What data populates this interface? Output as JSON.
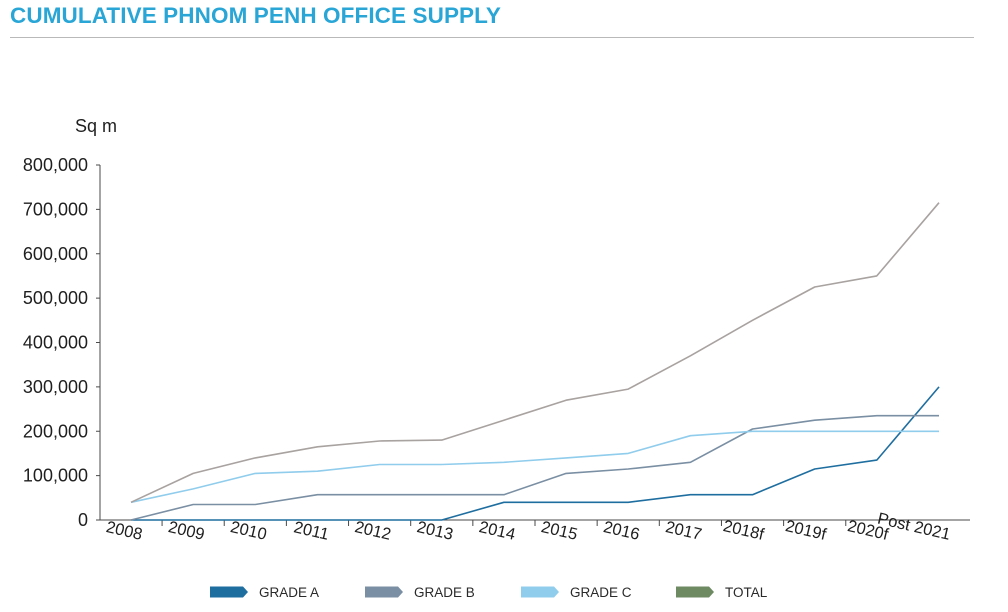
{
  "title": "CUMULATIVE PHNOM PENH OFFICE SUPPLY",
  "colors": {
    "title": "#2aa6d6",
    "axis": "#4a4a4a"
  },
  "chart_data": {
    "type": "line",
    "ylabel": "Sq m",
    "xlabel": "",
    "ylim": [
      0,
      800000
    ],
    "yticks": [
      0,
      100000,
      200000,
      300000,
      400000,
      500000,
      600000,
      700000,
      800000
    ],
    "ytick_labels": [
      "0",
      "100,000",
      "200,000",
      "300,000",
      "400,000",
      "500,000",
      "600,000",
      "700,000",
      "800,000"
    ],
    "categories": [
      "2008",
      "2009",
      "2010",
      "2011",
      "2012",
      "2013",
      "2014",
      "2015",
      "2016",
      "2017",
      "2018f",
      "2019f",
      "2020f",
      "Post 2021"
    ],
    "legend_position": "bottom",
    "grid": false,
    "series": [
      {
        "name": "GRADE A",
        "color": "#1f6ea0",
        "values": [
          0,
          0,
          0,
          0,
          0,
          0,
          40000,
          40000,
          40000,
          57000,
          57000,
          115000,
          135000,
          300000
        ]
      },
      {
        "name": "GRADE B",
        "color": "#7a8fa3",
        "values": [
          0,
          35000,
          35000,
          57000,
          57000,
          57000,
          57000,
          105000,
          115000,
          130000,
          205000,
          225000,
          235000,
          235000
        ]
      },
      {
        "name": "GRADE C",
        "color": "#90ccec",
        "values": [
          40000,
          70000,
          105000,
          110000,
          125000,
          125000,
          130000,
          140000,
          150000,
          190000,
          200000,
          200000,
          200000,
          200000
        ]
      },
      {
        "name": "TOTAL",
        "color": "#a8a2a0",
        "legend_color": "#6e8a63",
        "values": [
          40000,
          105000,
          140000,
          165000,
          178000,
          180000,
          225000,
          270000,
          295000,
          370000,
          450000,
          525000,
          550000,
          715000
        ]
      }
    ]
  }
}
